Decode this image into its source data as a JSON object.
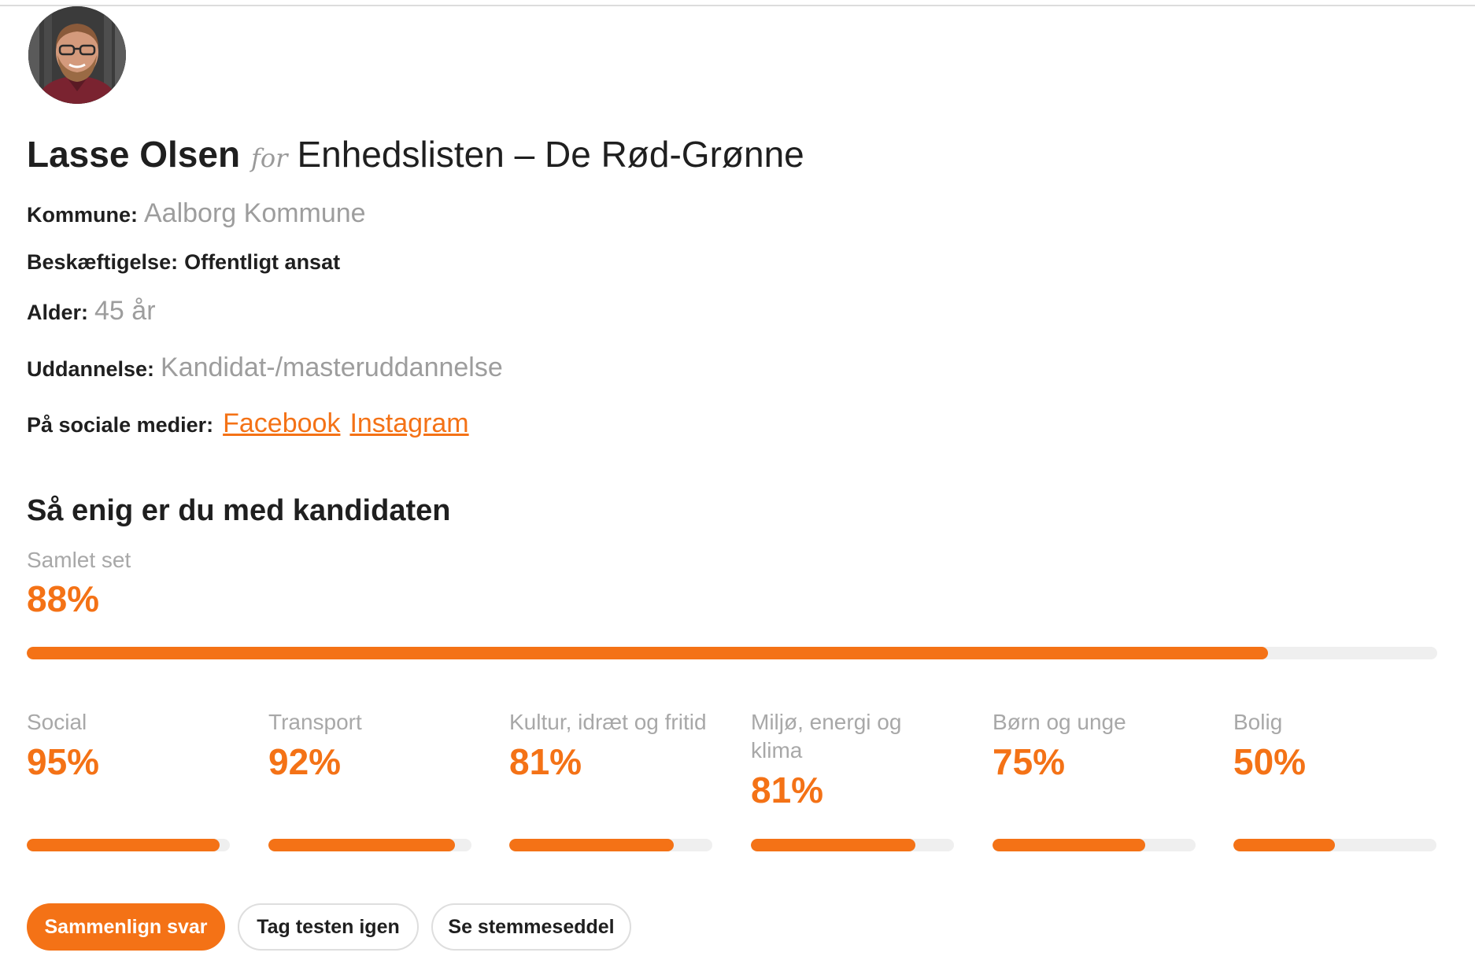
{
  "candidate": {
    "name": "Lasse Olsen",
    "for_word": "for",
    "party": "Enhedslisten – De Rød-Grønne"
  },
  "info": {
    "kommune": {
      "label": "Kommune:",
      "value": "Aalborg Kommune"
    },
    "beskaeftigelse": {
      "label": "Beskæftigelse:",
      "value": "Offentligt ansat"
    },
    "alder": {
      "label": "Alder:",
      "value": "45 år"
    },
    "uddannelse": {
      "label": "Uddannelse:",
      "value": "Kandidat-/masteruddannelse"
    },
    "social": {
      "label": "På sociale medier:",
      "links": [
        "Facebook",
        "Instagram"
      ]
    }
  },
  "agreement": {
    "title": "Så enig er du med kandidaten",
    "overall": {
      "label": "Samlet set",
      "value": "88%",
      "fraction": 0.88
    },
    "categories": [
      {
        "label": "Social",
        "value": "95%",
        "fraction": 0.95
      },
      {
        "label": "Transport",
        "value": "92%",
        "fraction": 0.92
      },
      {
        "label": "Kultur, idræt og fritid",
        "value": "81%",
        "fraction": 0.81
      },
      {
        "label": "Miljø, energi og klima",
        "value": "81%",
        "fraction": 0.81
      },
      {
        "label": "Børn og unge",
        "value": "75%",
        "fraction": 0.75
      },
      {
        "label": "Bolig",
        "value": "50%",
        "fraction": 0.5
      }
    ]
  },
  "actions": {
    "compare": "Sammenlign svar",
    "retake": "Tag testen igen",
    "ballot": "Se stemmeseddel"
  },
  "colors": {
    "accent": "#f47216",
    "track": "#efefef",
    "muted_text": "#a8a8a8"
  }
}
